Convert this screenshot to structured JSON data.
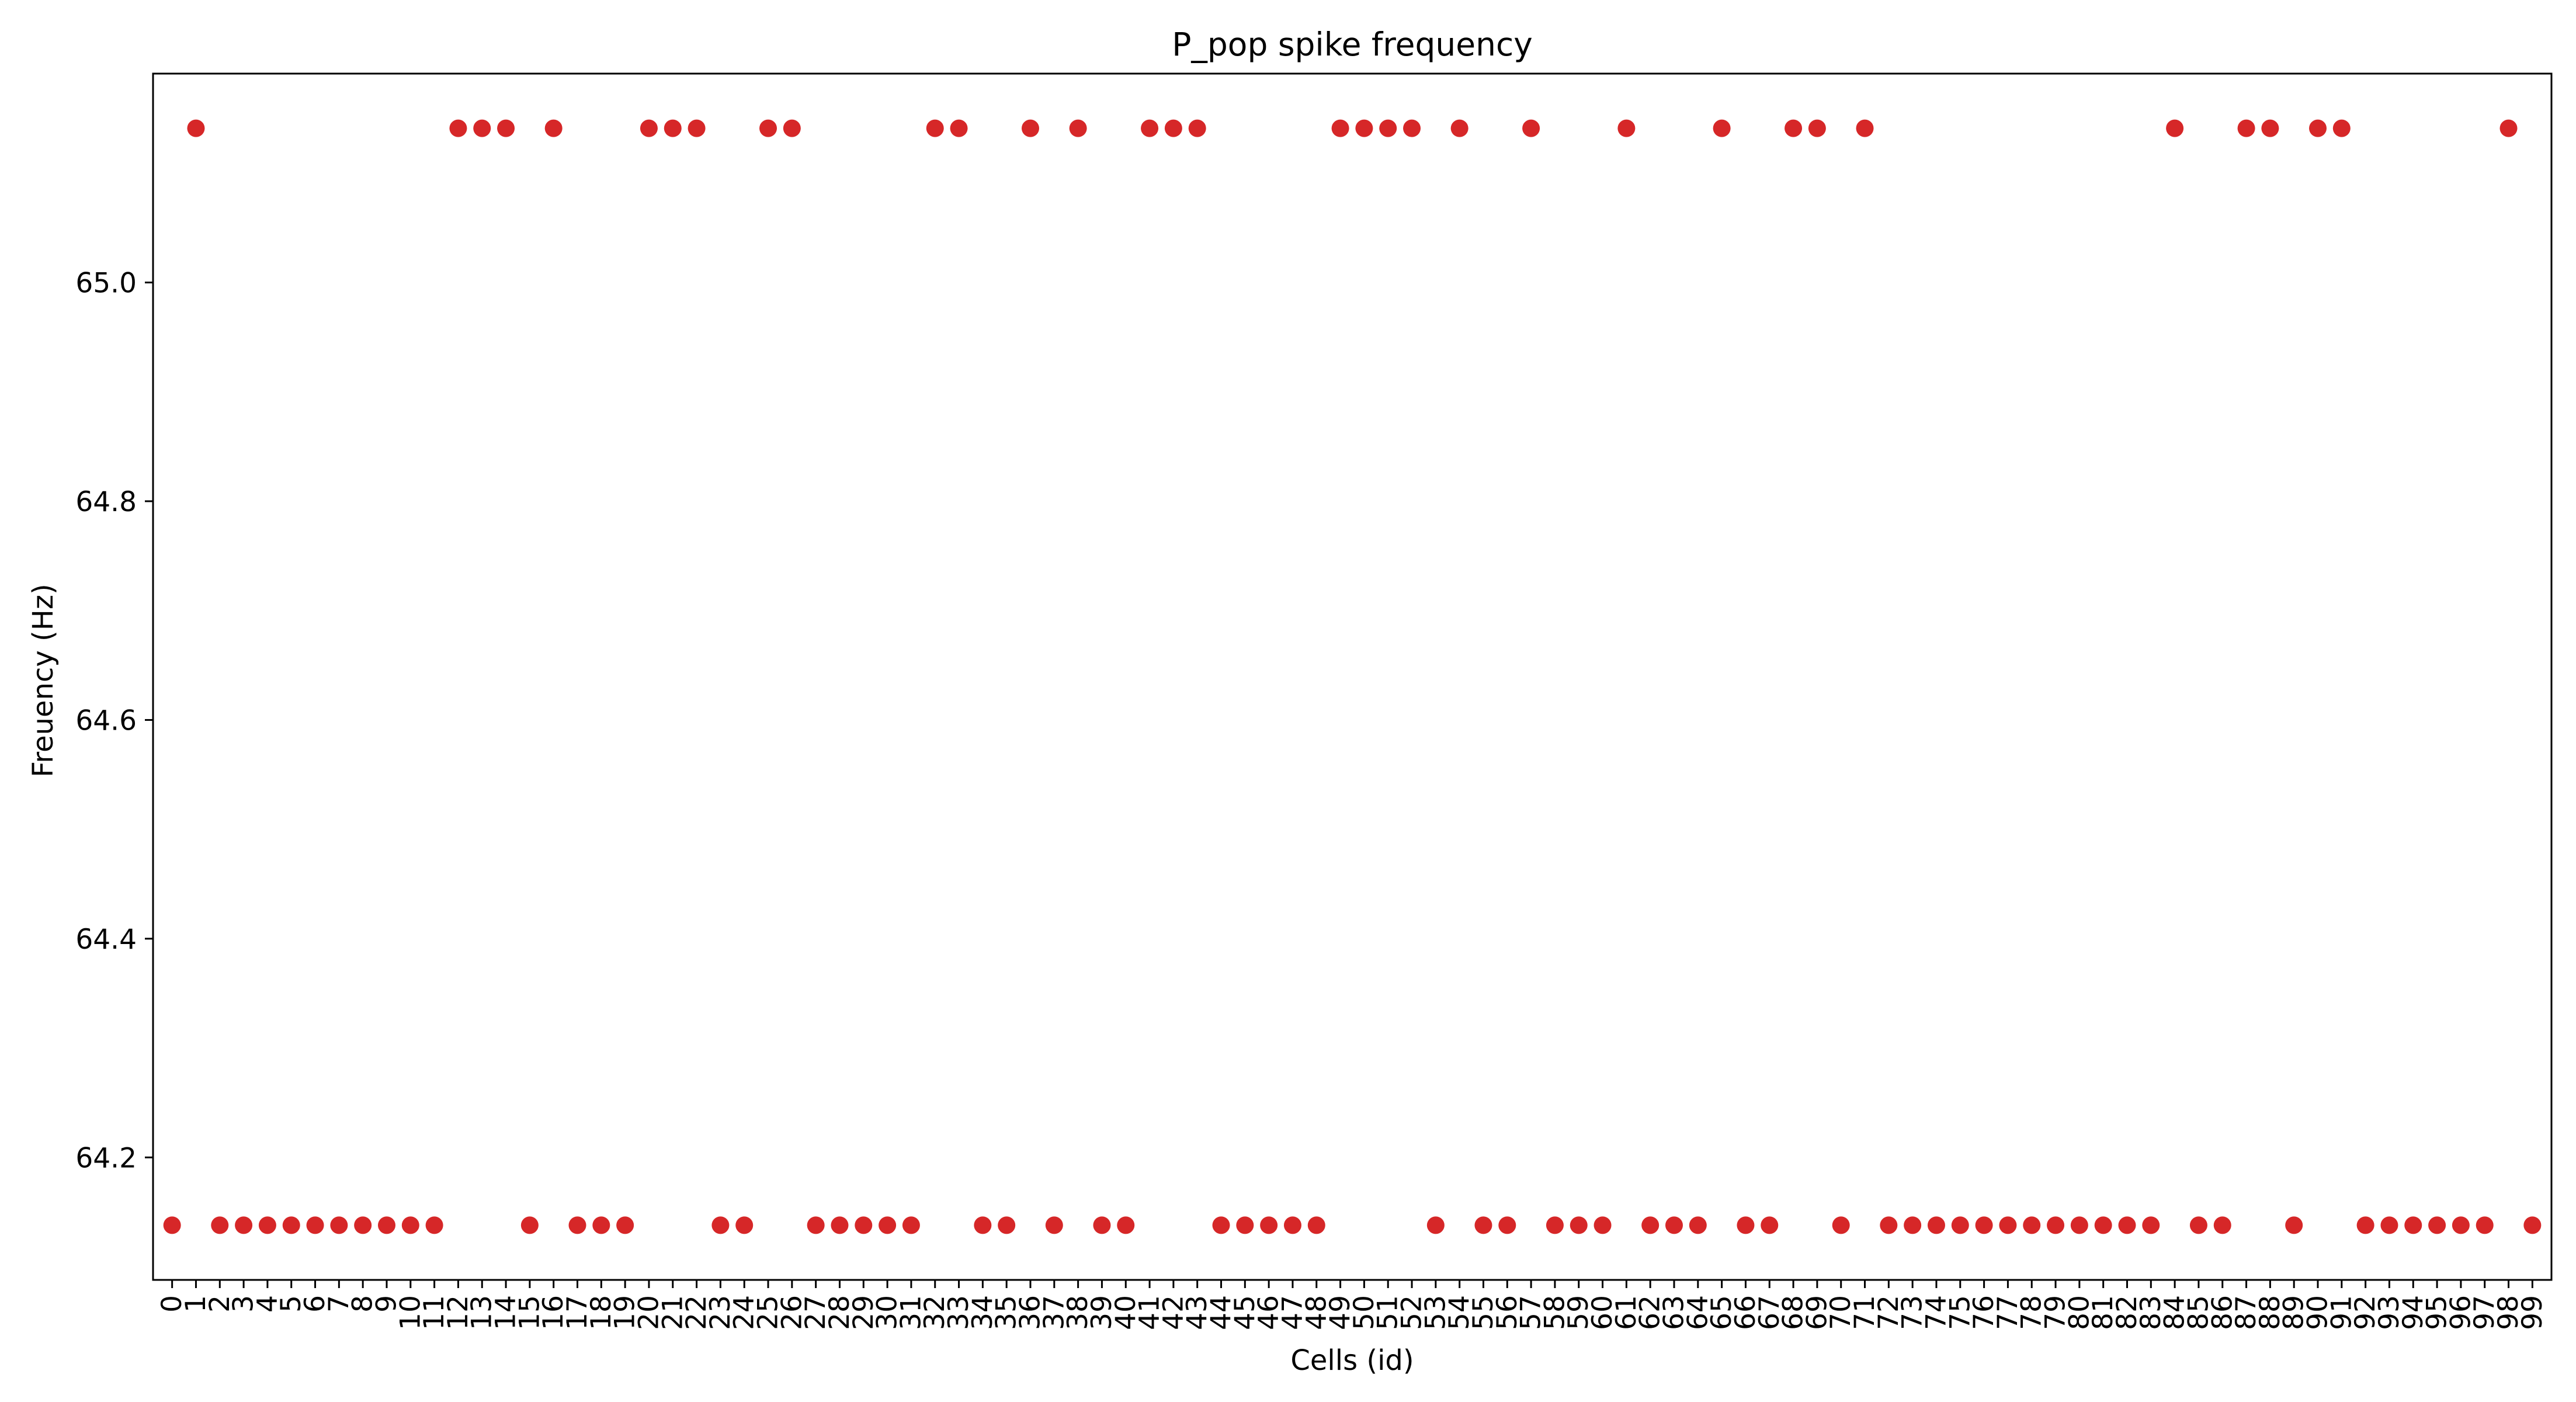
{
  "chart_data": {
    "type": "scatter",
    "title": "P_pop spike frequency",
    "xlabel": "Cells (id)",
    "ylabel": "Freuency (Hz)",
    "marker_color": "#d62728",
    "x": [
      0,
      1,
      2,
      3,
      4,
      5,
      6,
      7,
      8,
      9,
      10,
      11,
      12,
      13,
      14,
      15,
      16,
      17,
      18,
      19,
      20,
      21,
      22,
      23,
      24,
      25,
      26,
      27,
      28,
      29,
      30,
      31,
      32,
      33,
      34,
      35,
      36,
      37,
      38,
      39,
      40,
      41,
      42,
      43,
      44,
      45,
      46,
      47,
      48,
      49,
      50,
      51,
      52,
      53,
      54,
      55,
      56,
      57,
      58,
      59,
      60,
      61,
      62,
      63,
      64,
      65,
      66,
      67,
      68,
      69,
      70,
      71,
      72,
      73,
      74,
      75,
      76,
      77,
      78,
      79,
      80,
      81,
      82,
      83,
      84,
      85,
      86,
      87,
      88,
      89,
      90,
      91,
      92,
      93,
      94,
      95,
      96,
      97,
      98,
      99
    ],
    "y": [
      64.138,
      65.141,
      64.138,
      64.138,
      64.138,
      64.138,
      64.138,
      64.138,
      64.138,
      64.138,
      64.138,
      64.138,
      65.141,
      65.141,
      65.141,
      64.138,
      65.141,
      64.138,
      64.138,
      64.138,
      65.141,
      65.141,
      65.141,
      64.138,
      64.138,
      65.141,
      65.141,
      64.138,
      64.138,
      64.138,
      64.138,
      64.138,
      65.141,
      65.141,
      64.138,
      64.138,
      65.141,
      64.138,
      65.141,
      64.138,
      64.138,
      65.141,
      65.141,
      65.141,
      64.138,
      64.138,
      64.138,
      64.138,
      64.138,
      65.141,
      65.141,
      65.141,
      65.141,
      64.138,
      65.141,
      64.138,
      64.138,
      65.141,
      64.138,
      64.138,
      64.138,
      65.141,
      64.138,
      64.138,
      64.138,
      65.141,
      64.138,
      64.138,
      65.141,
      65.141,
      64.138,
      65.141,
      64.138,
      64.138,
      64.138,
      64.138,
      64.138,
      64.138,
      64.138,
      64.138,
      64.138,
      64.138,
      64.138,
      64.138,
      65.141,
      64.138,
      64.138,
      65.141,
      65.141,
      64.138,
      65.141,
      65.141,
      64.138,
      64.138,
      64.138,
      64.138,
      64.138,
      64.138,
      65.141,
      64.138
    ],
    "xlim": [
      -0.8,
      99.8
    ],
    "ylim": [
      64.088,
      65.191
    ],
    "yticks": [
      "64.2",
      "64.4",
      "64.6",
      "64.8",
      "65.0"
    ],
    "xtick_label_rotation": "vertical",
    "grid": false,
    "legend": "none"
  }
}
